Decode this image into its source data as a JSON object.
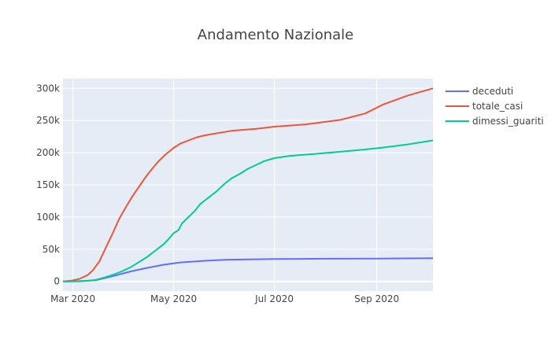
{
  "chart_data": {
    "type": "line",
    "title": "Andamento Nazionale",
    "xlabel": "",
    "ylabel": "",
    "x_range": [
      "2020-02-24",
      "2020-10-05"
    ],
    "ylim": [
      -15000,
      315000
    ],
    "y_ticks": [
      0,
      50000,
      100000,
      150000,
      200000,
      250000,
      300000
    ],
    "y_tick_labels": [
      "0",
      "50k",
      "100k",
      "150k",
      "200k",
      "250k",
      "300k"
    ],
    "x_ticks": [
      "2020-03-01",
      "2020-05-01",
      "2020-07-01",
      "2020-09-01"
    ],
    "x_tick_labels": [
      "Mar 2020",
      "May 2020",
      "Jul 2020",
      "Sep 2020"
    ],
    "grid": true,
    "legend_position": "top-right",
    "series": [
      {
        "name": "deceduti",
        "color": "#636efa",
        "points": [
          [
            "2020-02-24",
            0
          ],
          [
            "2020-03-05",
            200
          ],
          [
            "2020-03-15",
            2000
          ],
          [
            "2020-03-25",
            8000
          ],
          [
            "2020-04-05",
            15500
          ],
          [
            "2020-04-15",
            21000
          ],
          [
            "2020-04-25",
            26000
          ],
          [
            "2020-05-05",
            29500
          ],
          [
            "2020-05-20",
            32000
          ],
          [
            "2020-06-01",
            33500
          ],
          [
            "2020-06-15",
            34300
          ],
          [
            "2020-07-01",
            34800
          ],
          [
            "2020-08-01",
            35200
          ],
          [
            "2020-09-01",
            35500
          ],
          [
            "2020-10-05",
            36000
          ]
        ]
      },
      {
        "name": "totale_casi",
        "color": "#ef553b",
        "points": [
          [
            "2020-02-24",
            0
          ],
          [
            "2020-02-29",
            1100
          ],
          [
            "2020-03-05",
            4000
          ],
          [
            "2020-03-10",
            10000
          ],
          [
            "2020-03-13",
            17000
          ],
          [
            "2020-03-17",
            31000
          ],
          [
            "2020-03-21",
            53000
          ],
          [
            "2020-03-25",
            74000
          ],
          [
            "2020-03-29",
            97000
          ],
          [
            "2020-04-02",
            115000
          ],
          [
            "2020-04-06",
            132000
          ],
          [
            "2020-04-10",
            147000
          ],
          [
            "2020-04-14",
            162000
          ],
          [
            "2020-04-18",
            175000
          ],
          [
            "2020-04-22",
            187000
          ],
          [
            "2020-04-26",
            197000
          ],
          [
            "2020-05-01",
            207500
          ],
          [
            "2020-05-05",
            214000
          ],
          [
            "2020-05-10",
            219000
          ],
          [
            "2020-05-15",
            224000
          ],
          [
            "2020-05-20",
            227000
          ],
          [
            "2020-05-27",
            230000
          ],
          [
            "2020-06-05",
            234000
          ],
          [
            "2020-06-20",
            237000
          ],
          [
            "2020-07-01",
            240500
          ],
          [
            "2020-07-20",
            244000
          ],
          [
            "2020-08-10",
            251000
          ],
          [
            "2020-08-25",
            261000
          ],
          [
            "2020-09-05",
            275000
          ],
          [
            "2020-09-20",
            289000
          ],
          [
            "2020-10-05",
            300000
          ]
        ]
      },
      {
        "name": "dimessi_guariti",
        "color": "#00cc96",
        "points": [
          [
            "2020-02-24",
            0
          ],
          [
            "2020-03-01",
            100
          ],
          [
            "2020-03-10",
            1000
          ],
          [
            "2020-03-15",
            2500
          ],
          [
            "2020-03-20",
            6000
          ],
          [
            "2020-03-25",
            10000
          ],
          [
            "2020-03-30",
            15000
          ],
          [
            "2020-04-05",
            22000
          ],
          [
            "2020-04-10",
            30000
          ],
          [
            "2020-04-15",
            38000
          ],
          [
            "2020-04-20",
            48000
          ],
          [
            "2020-04-25",
            58000
          ],
          [
            "2020-04-28",
            66000
          ],
          [
            "2020-05-01",
            75000
          ],
          [
            "2020-05-04",
            80000
          ],
          [
            "2020-05-06",
            90000
          ],
          [
            "2020-05-10",
            100000
          ],
          [
            "2020-05-14",
            110000
          ],
          [
            "2020-05-17",
            120000
          ],
          [
            "2020-05-22",
            130000
          ],
          [
            "2020-05-27",
            140000
          ],
          [
            "2020-06-01",
            152000
          ],
          [
            "2020-06-05",
            160000
          ],
          [
            "2020-06-10",
            167000
          ],
          [
            "2020-06-15",
            175000
          ],
          [
            "2020-06-20",
            181000
          ],
          [
            "2020-06-25",
            187000
          ],
          [
            "2020-07-01",
            191500
          ],
          [
            "2020-07-10",
            195000
          ],
          [
            "2020-07-25",
            198000
          ],
          [
            "2020-08-10",
            201500
          ],
          [
            "2020-08-25",
            205000
          ],
          [
            "2020-09-05",
            208000
          ],
          [
            "2020-09-20",
            213000
          ],
          [
            "2020-10-05",
            219000
          ]
        ]
      }
    ]
  }
}
